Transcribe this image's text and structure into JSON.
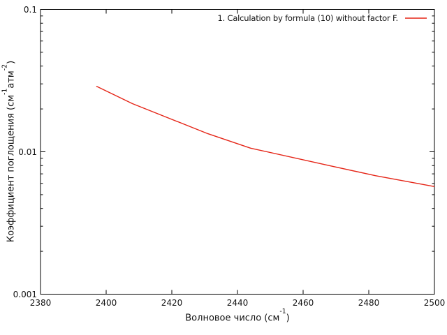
{
  "colors": {
    "background": "#ffffff",
    "axis": "#000000",
    "text": "#111111",
    "series1": "#e52517"
  },
  "chart_data": {
    "type": "line",
    "title": "",
    "grid": false,
    "legend_position": "top-right-inside",
    "xlabel_segments": [
      {
        "t": "Волновое число (см"
      },
      {
        "t": "-1",
        "sup": true
      },
      {
        "t": ")"
      }
    ],
    "ylabel_segments": [
      {
        "t": "Коэффициент поглощения (см"
      },
      {
        "t": "-1",
        "sup": true
      },
      {
        "t": "атм"
      },
      {
        "t": "-2",
        "sup": true
      },
      {
        "t": ")"
      }
    ],
    "x_axis": {
      "scale": "linear",
      "min": 2380,
      "max": 2500,
      "ticks": [
        {
          "v": 2380,
          "label": "2380"
        },
        {
          "v": 2400,
          "label": "2400"
        },
        {
          "v": 2420,
          "label": "2420"
        },
        {
          "v": 2440,
          "label": "2440"
        },
        {
          "v": 2460,
          "label": "2460"
        },
        {
          "v": 2480,
          "label": "2480"
        },
        {
          "v": 2500,
          "label": "2500"
        }
      ]
    },
    "y_axis": {
      "scale": "log",
      "min": 0.001,
      "max": 0.1,
      "ticks": [
        {
          "v": 0.1,
          "label": "0.1"
        },
        {
          "v": 0.01,
          "label": "0.01"
        },
        {
          "v": 0.001,
          "label": "0.001"
        }
      ],
      "minor_ticks": [
        0.002,
        0.003,
        0.004,
        0.005,
        0.006,
        0.007,
        0.008,
        0.009,
        0.02,
        0.03,
        0.04,
        0.05,
        0.06,
        0.07,
        0.08,
        0.09
      ]
    },
    "series": [
      {
        "name": "1. Calculation by formula (10) without factor F.",
        "color": "#e52517",
        "points": [
          [
            2397,
            0.0289
          ],
          [
            2408,
            0.0218
          ],
          [
            2431,
            0.0134
          ],
          [
            2444,
            0.0106
          ],
          [
            2468,
            0.008
          ],
          [
            2482,
            0.0068
          ],
          [
            2500,
            0.0057
          ]
        ]
      }
    ]
  }
}
